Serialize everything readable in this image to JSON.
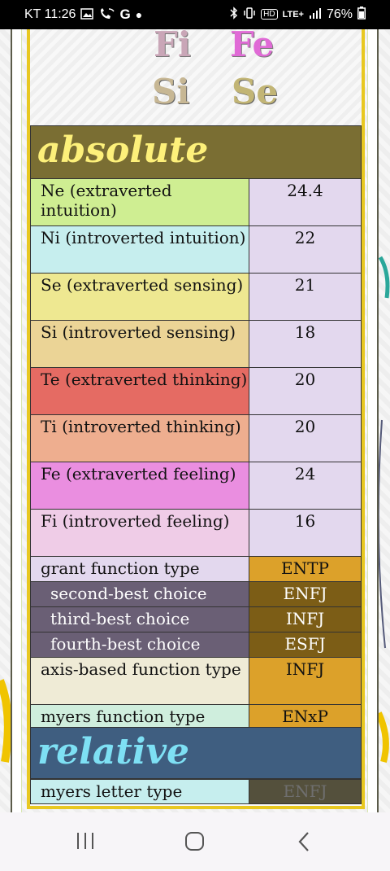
{
  "status_bar": {
    "carrier_time": "KT 11:26",
    "notification_icons": [
      "photo-icon",
      "wifi-call-icon",
      "google-icon",
      "dot-icon"
    ],
    "system_icons": [
      "bluetooth-icon",
      "vibrate-icon",
      "hd-icon",
      "lte-icon",
      "signal-icon"
    ],
    "hd": "HD",
    "lte": "LTE+",
    "battery": "76%"
  },
  "header_art": {
    "words": [
      "Fi",
      "Fe",
      "Si",
      "Se"
    ]
  },
  "sections": {
    "absolute": "absolute",
    "relative": "relative"
  },
  "absolute_rows": [
    {
      "label": "Ne (extraverted intuition)",
      "value": "24.4",
      "label_color": "#cfee92",
      "value_color": "#e3d8ee"
    },
    {
      "label": "Ni (introverted intuition)",
      "value": "22",
      "label_color": "#c6eeee",
      "value_color": "#e3d8ee"
    },
    {
      "label": "Se (extraverted sensing)",
      "value": "21",
      "label_color": "#eee891",
      "value_color": "#e3d8ee"
    },
    {
      "label": "Si (introverted sensing)",
      "value": "18",
      "label_color": "#ebd496",
      "value_color": "#e3d8ee"
    },
    {
      "label": "Te (extraverted thinking)",
      "value": "20",
      "label_color": "#e56b63",
      "value_color": "#e3d8ee"
    },
    {
      "label": "Ti (introverted thinking)",
      "value": "20",
      "label_color": "#eeae8f",
      "value_color": "#e3d8ee"
    },
    {
      "label": "Fe (extraverted feeling)",
      "value": "24",
      "label_color": "#ea8ee0",
      "value_color": "#e3d8ee"
    },
    {
      "label": "Fi (introverted feeling)",
      "value": "16",
      "label_color": "#efcce7",
      "value_color": "#e3d8ee"
    },
    {
      "label": "grant function type",
      "value": "ENTP",
      "label_color": "#e3d8ee",
      "value_color": "#dca12a"
    },
    {
      "label": "second-best choice",
      "value": "ENFJ",
      "label_color": "#6a5f75",
      "value_color": "#7c5d16",
      "dark": true
    },
    {
      "label": "third-best choice",
      "value": "INFJ",
      "label_color": "#6a5f75",
      "value_color": "#7c5d16",
      "dark": true
    },
    {
      "label": "fourth-best choice",
      "value": "ESFJ",
      "label_color": "#6a5f75",
      "value_color": "#7c5d16",
      "dark": true
    },
    {
      "label": "axis-based function type",
      "value": "INFJ",
      "label_color": "#efebd6",
      "value_color": "#dca12a"
    },
    {
      "label": "myers function type",
      "value": "ENxP",
      "label_color": "#cfeedd",
      "value_color": "#dca12a"
    }
  ],
  "relative_rows": [
    {
      "label": "myers letter type",
      "value": "ENFJ",
      "label_color": "#c6eeee",
      "value_color": "#54503c"
    }
  ],
  "nav_bar": {
    "recents": "recents-icon",
    "home": "home-icon",
    "back": "back-icon"
  }
}
